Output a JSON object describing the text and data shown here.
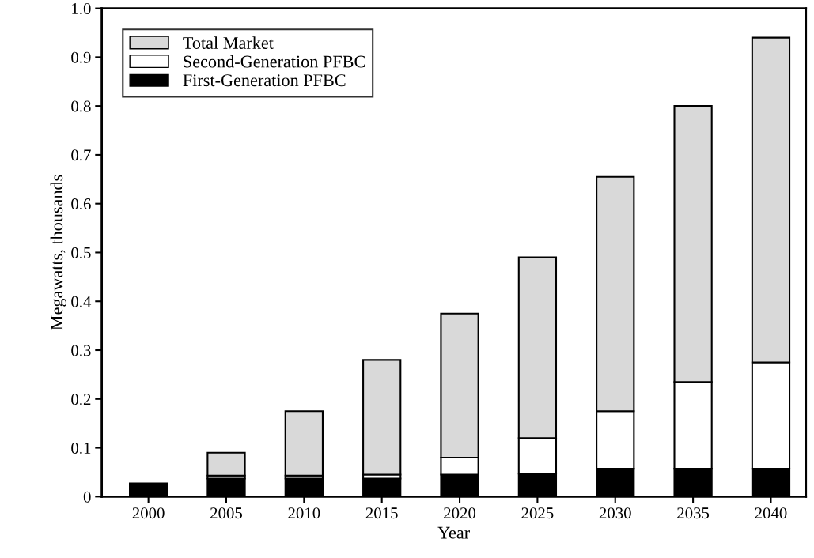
{
  "chart_data": {
    "type": "bar",
    "stacked": true,
    "xlabel": "Year",
    "ylabel": "Megawatts, thousands",
    "categories": [
      "2000",
      "2005",
      "2010",
      "2015",
      "2020",
      "2025",
      "2030",
      "2035",
      "2040"
    ],
    "series": [
      {
        "name": "First-Generation PFBC",
        "color": "#000000",
        "values": [
          0.027,
          0.037,
          0.037,
          0.037,
          0.045,
          0.047,
          0.057,
          0.057,
          0.057
        ]
      },
      {
        "name": "Second-Generation PFBC",
        "color": "#ffffff",
        "values": [
          null,
          0.006,
          0.006,
          0.008,
          0.035,
          0.073,
          0.118,
          0.178,
          0.218
        ]
      },
      {
        "name": "Total Market",
        "color": "#d9d9d9",
        "values": [
          null,
          0.047,
          0.132,
          0.235,
          0.295,
          0.37,
          0.48,
          0.565,
          0.665
        ]
      }
    ],
    "ylim": [
      0,
      1.0
    ],
    "yticks": [
      0,
      0.1,
      0.2,
      0.3,
      0.4,
      0.5,
      0.6,
      0.7,
      0.8,
      0.9,
      {
        "value": 1.0,
        "label": "1.0"
      }
    ],
    "grid": false,
    "legend": "top left"
  }
}
